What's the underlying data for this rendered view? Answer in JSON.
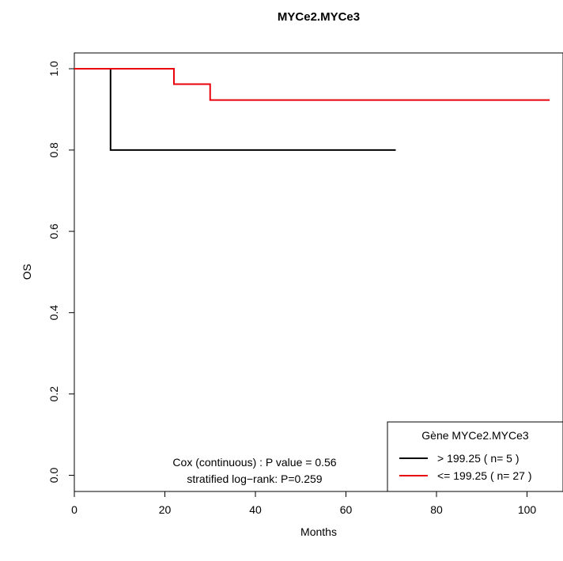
{
  "chart_data": {
    "type": "line",
    "subtype": "kaplan-meier",
    "title": "MYCe2.MYCe3",
    "xlabel": "Months",
    "ylabel": "OS",
    "xlim": [
      0,
      105
    ],
    "ylim": [
      0,
      1.0
    ],
    "x_ticks": [
      "0",
      "20",
      "40",
      "60",
      "80",
      "100"
    ],
    "y_ticks": [
      "0.0",
      "0.2",
      "0.4",
      "0.6",
      "0.8",
      "1.0"
    ],
    "grid": false,
    "legend_position": "bottom-right",
    "legend_title": "Gène MYCe2.MYCe3",
    "series": [
      {
        "name": "> 199.25 ( n= 5 )",
        "color": "#000000",
        "steps": [
          [
            0,
            1.0
          ],
          [
            8,
            0.8
          ],
          [
            71,
            0.8
          ]
        ]
      },
      {
        "name": "<= 199.25 ( n= 27 )",
        "color": "#e8000b",
        "steps": [
          [
            0,
            1.0
          ],
          [
            22,
            0.962
          ],
          [
            30,
            0.923
          ],
          [
            105,
            0.923
          ]
        ]
      }
    ],
    "annotations": [
      "Cox (continuous) : P value = 0.56",
      "stratified log−rank: P=0.259"
    ]
  }
}
